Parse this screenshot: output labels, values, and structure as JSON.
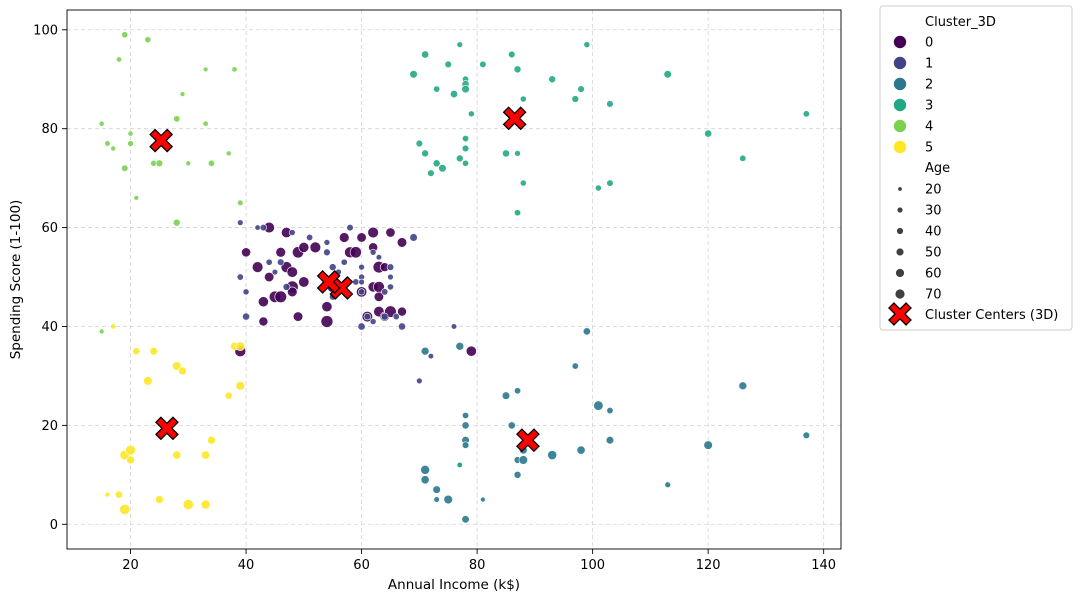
{
  "chart_data": {
    "type": "scatter",
    "title": "",
    "xlabel": "Annual Income (k$)",
    "ylabel": "Spending Score (1-100)",
    "xlim": [
      9,
      143
    ],
    "ylim": [
      -5,
      104
    ],
    "xticks": [
      20,
      40,
      60,
      80,
      100,
      120,
      140
    ],
    "yticks": [
      0,
      20,
      40,
      60,
      80,
      100
    ],
    "grid": true,
    "grid_style": "dashed",
    "legend_position": "outside-right",
    "hue_title": "Cluster_3D",
    "size_title": "Age",
    "size_levels": [
      "20",
      "30",
      "40",
      "50",
      "60",
      "70"
    ],
    "centers_label": "Cluster Centers (3D)",
    "colors": {
      "0": "#440154",
      "1": "#414487",
      "2": "#2a788e",
      "3": "#22a884",
      "4": "#7ad151",
      "5": "#fde725",
      "center_fill": "#ff0000",
      "center_edge": "#000000",
      "grid": "#d3d3d3"
    },
    "clusters": [
      {
        "name": "0",
        "points": [
          [
            39,
            35,
            60
          ],
          [
            40,
            55,
            48
          ],
          [
            42,
            52,
            58
          ],
          [
            43,
            45,
            55
          ],
          [
            43,
            41,
            47
          ],
          [
            44,
            60,
            58
          ],
          [
            44,
            50,
            50
          ],
          [
            45,
            46,
            63
          ],
          [
            46,
            55,
            52
          ],
          [
            46,
            46,
            65
          ],
          [
            47,
            59,
            55
          ],
          [
            47,
            52,
            60
          ],
          [
            48,
            51,
            57
          ],
          [
            48,
            48,
            66
          ],
          [
            48,
            47,
            52
          ],
          [
            49,
            42,
            50
          ],
          [
            49,
            55,
            62
          ],
          [
            50,
            49,
            56
          ],
          [
            50,
            56,
            54
          ],
          [
            52,
            56,
            58
          ],
          [
            54,
            41,
            66
          ],
          [
            54,
            44,
            55
          ],
          [
            55,
            48,
            60
          ],
          [
            57,
            58,
            52
          ],
          [
            58,
            55,
            60
          ],
          [
            59,
            55,
            62
          ],
          [
            60,
            58,
            50
          ],
          [
            60,
            47,
            56
          ],
          [
            61,
            42,
            57
          ],
          [
            62,
            59,
            58
          ],
          [
            62,
            56,
            48
          ],
          [
            62,
            48,
            54
          ],
          [
            63,
            52,
            64
          ],
          [
            63,
            48,
            60
          ],
          [
            63,
            46,
            50
          ],
          [
            63,
            43,
            57
          ],
          [
            64,
            42,
            48
          ],
          [
            64,
            52,
            46
          ],
          [
            65,
            43,
            64
          ],
          [
            65,
            59,
            49
          ],
          [
            67,
            57,
            51
          ],
          [
            67,
            43,
            47
          ],
          [
            79,
            35,
            55
          ]
        ]
      },
      {
        "name": "1",
        "points": [
          [
            39,
            61,
            26
          ],
          [
            39,
            50,
            30
          ],
          [
            40,
            42,
            35
          ],
          [
            40,
            47,
            28
          ],
          [
            42,
            60,
            24
          ],
          [
            43,
            60,
            31
          ],
          [
            44,
            53,
            29
          ],
          [
            45,
            51,
            26
          ],
          [
            46,
            53,
            32
          ],
          [
            47,
            48,
            34
          ],
          [
            48,
            59,
            28
          ],
          [
            51,
            58,
            30
          ],
          [
            54,
            57,
            27
          ],
          [
            54,
            55,
            33
          ],
          [
            55,
            52,
            34
          ],
          [
            55,
            46,
            32
          ],
          [
            56,
            51,
            27
          ],
          [
            57,
            53,
            29
          ],
          [
            58,
            60,
            31
          ],
          [
            59,
            49,
            30
          ],
          [
            60,
            52,
            27
          ],
          [
            60,
            50,
            28
          ],
          [
            60,
            49,
            26
          ],
          [
            60,
            47,
            30
          ],
          [
            60,
            40,
            36
          ],
          [
            61,
            42,
            32
          ],
          [
            62,
            41,
            28
          ],
          [
            62,
            55,
            27
          ],
          [
            63,
            54,
            25
          ],
          [
            64,
            47,
            31
          ],
          [
            64,
            42,
            34
          ],
          [
            65,
            50,
            26
          ],
          [
            65,
            48,
            29
          ],
          [
            65,
            52,
            32
          ],
          [
            66,
            42,
            30
          ],
          [
            67,
            40,
            35
          ],
          [
            69,
            58,
            38
          ],
          [
            70,
            29,
            26
          ],
          [
            72,
            34,
            24
          ],
          [
            76,
            40,
            25
          ]
        ]
      },
      {
        "name": "2",
        "points": [
          [
            71,
            11,
            47
          ],
          [
            71,
            9,
            42
          ],
          [
            71,
            35,
            40
          ],
          [
            73,
            7,
            38
          ],
          [
            73,
            5,
            25
          ],
          [
            75,
            5,
            45
          ],
          [
            77,
            12,
            22
          ],
          [
            77,
            36,
            40
          ],
          [
            78,
            1,
            37
          ],
          [
            78,
            22,
            30
          ],
          [
            78,
            20,
            35
          ],
          [
            78,
            17,
            38
          ],
          [
            78,
            16,
            32
          ],
          [
            81,
            5,
            20
          ],
          [
            85,
            26,
            38
          ],
          [
            86,
            20,
            35
          ],
          [
            87,
            27,
            30
          ],
          [
            87,
            13,
            33
          ],
          [
            87,
            10,
            34
          ],
          [
            88,
            13,
            45
          ],
          [
            88,
            15,
            40
          ],
          [
            93,
            14,
            48
          ],
          [
            97,
            32,
            30
          ],
          [
            98,
            15,
            42
          ],
          [
            99,
            39,
            36
          ],
          [
            101,
            24,
            50
          ],
          [
            103,
            23,
            30
          ],
          [
            103,
            17,
            38
          ],
          [
            113,
            8,
            26
          ],
          [
            120,
            16,
            45
          ],
          [
            126,
            28,
            40
          ],
          [
            137,
            18,
            32
          ]
        ]
      },
      {
        "name": "3",
        "points": [
          [
            69,
            91,
            38
          ],
          [
            70,
            77,
            32
          ],
          [
            71,
            95,
            36
          ],
          [
            71,
            75,
            34
          ],
          [
            72,
            71,
            32
          ],
          [
            73,
            88,
            30
          ],
          [
            73,
            73,
            34
          ],
          [
            74,
            72,
            38
          ],
          [
            75,
            93,
            32
          ],
          [
            76,
            87,
            36
          ],
          [
            77,
            97,
            26
          ],
          [
            77,
            74,
            34
          ],
          [
            77,
            12,
            24
          ],
          [
            78,
            90,
            30
          ],
          [
            78,
            89,
            35
          ],
          [
            78,
            88,
            38
          ],
          [
            78,
            78,
            30
          ],
          [
            78,
            76,
            32
          ],
          [
            78,
            73,
            29
          ],
          [
            79,
            83,
            28
          ],
          [
            81,
            93,
            31
          ],
          [
            85,
            75,
            35
          ],
          [
            86,
            95,
            32
          ],
          [
            87,
            92,
            34
          ],
          [
            87,
            75,
            27
          ],
          [
            87,
            63,
            30
          ],
          [
            88,
            86,
            28
          ],
          [
            88,
            69,
            28
          ],
          [
            93,
            90,
            34
          ],
          [
            97,
            86,
            33
          ],
          [
            98,
            88,
            32
          ],
          [
            99,
            97,
            28
          ],
          [
            101,
            68,
            28
          ],
          [
            103,
            85,
            32
          ],
          [
            103,
            69,
            31
          ],
          [
            113,
            91,
            38
          ],
          [
            120,
            79,
            35
          ],
          [
            126,
            74,
            30
          ],
          [
            137,
            83,
            30
          ]
        ]
      },
      {
        "name": "4",
        "points": [
          [
            15,
            81,
            22
          ],
          [
            15,
            39,
            20
          ],
          [
            16,
            77,
            24
          ],
          [
            17,
            76,
            21
          ],
          [
            18,
            94,
            23
          ],
          [
            19,
            99,
            29
          ],
          [
            19,
            72,
            31
          ],
          [
            20,
            77,
            27
          ],
          [
            20,
            79,
            22
          ],
          [
            21,
            66,
            20
          ],
          [
            23,
            98,
            29
          ],
          [
            24,
            73,
            28
          ],
          [
            25,
            73,
            33
          ],
          [
            28,
            82,
            30
          ],
          [
            28,
            61,
            34
          ],
          [
            29,
            87,
            21
          ],
          [
            30,
            73,
            21
          ],
          [
            33,
            92,
            20
          ],
          [
            33,
            81,
            23
          ],
          [
            34,
            73,
            30
          ],
          [
            37,
            75,
            21
          ],
          [
            38,
            92,
            23
          ],
          [
            39,
            65,
            25
          ]
        ]
      },
      {
        "name": "5",
        "points": [
          [
            16,
            6,
            20
          ],
          [
            17,
            40,
            22
          ],
          [
            18,
            6,
            35
          ],
          [
            19,
            14,
            50
          ],
          [
            19,
            3,
            55
          ],
          [
            20,
            15,
            52
          ],
          [
            20,
            13,
            40
          ],
          [
            21,
            35,
            35
          ],
          [
            23,
            29,
            45
          ],
          [
            24,
            35,
            38
          ],
          [
            25,
            5,
            40
          ],
          [
            28,
            32,
            45
          ],
          [
            28,
            14,
            42
          ],
          [
            29,
            31,
            40
          ],
          [
            30,
            4,
            55
          ],
          [
            33,
            4,
            48
          ],
          [
            33,
            14,
            42
          ],
          [
            34,
            17,
            40
          ],
          [
            37,
            26,
            35
          ],
          [
            38,
            36,
            40
          ],
          [
            39,
            36,
            45
          ],
          [
            39,
            28,
            45
          ]
        ]
      }
    ],
    "centers": [
      {
        "cluster": "0",
        "x": 56.5,
        "y": 47.8
      },
      {
        "cluster": "1",
        "x": 54.3,
        "y": 49.0
      },
      {
        "cluster": "2",
        "x": 88.8,
        "y": 17.0
      },
      {
        "cluster": "3",
        "x": 86.5,
        "y": 82.1
      },
      {
        "cluster": "4",
        "x": 25.3,
        "y": 77.6
      },
      {
        "cluster": "5",
        "x": 26.3,
        "y": 19.4
      }
    ]
  }
}
